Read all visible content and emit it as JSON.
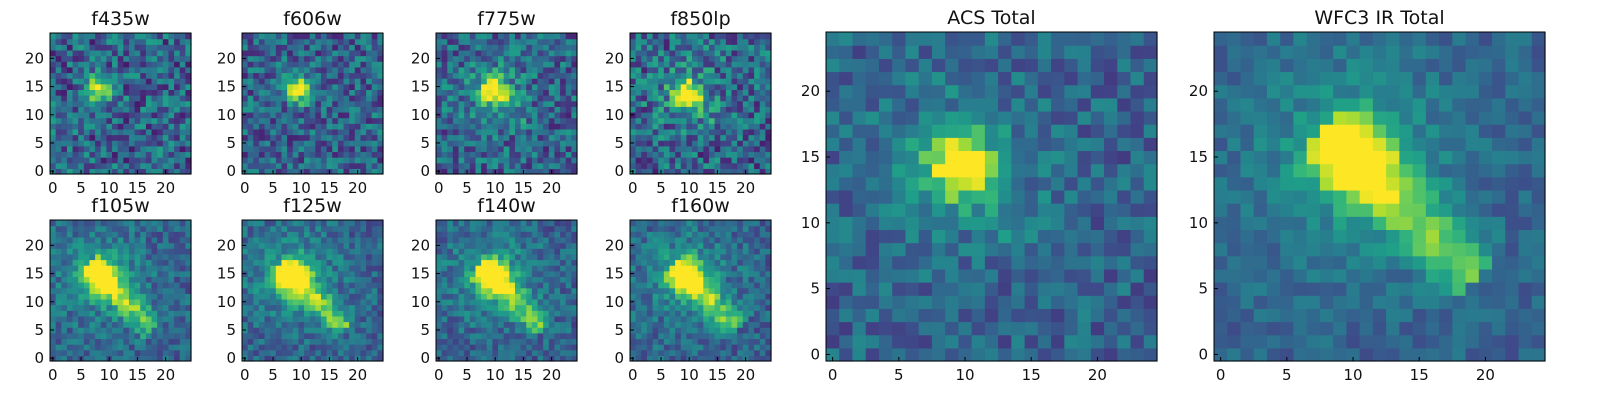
{
  "figure": {
    "colormap": "viridis",
    "background": "#ffffff",
    "frame_color": "#000000"
  },
  "chart_data": [
    {
      "type": "heatmap",
      "title": "f435w",
      "xticks": [
        "0",
        "5",
        "10",
        "15",
        "20"
      ],
      "yticks": [
        "0",
        "5",
        "10",
        "15",
        "20"
      ],
      "xlim": [
        0,
        24
      ],
      "ylim": [
        0,
        24
      ],
      "peak": [
        8.5,
        14.5
      ],
      "pattern": "compact",
      "noise": 0.5
    },
    {
      "type": "heatmap",
      "title": "f606w",
      "xticks": [
        "0",
        "5",
        "10",
        "15",
        "20"
      ],
      "yticks": [
        "0",
        "5",
        "10",
        "15",
        "20"
      ],
      "xlim": [
        0,
        24
      ],
      "ylim": [
        0,
        24
      ],
      "peak": [
        9.5,
        14.5
      ],
      "pattern": "compact",
      "noise": 0.45
    },
    {
      "type": "heatmap",
      "title": "f775w",
      "xticks": [
        "0",
        "5",
        "10",
        "15",
        "20"
      ],
      "yticks": [
        "0",
        "5",
        "10",
        "15",
        "20"
      ],
      "xlim": [
        0,
        24
      ],
      "ylim": [
        0,
        24
      ],
      "peak": [
        9.5,
        14.5
      ],
      "pattern": "compact-tail",
      "noise": 0.45
    },
    {
      "type": "heatmap",
      "title": "f850lp",
      "xticks": [
        "0",
        "5",
        "10",
        "15",
        "20"
      ],
      "yticks": [
        "0",
        "5",
        "10",
        "15",
        "20"
      ],
      "xlim": [
        0,
        24
      ],
      "ylim": [
        0,
        24
      ],
      "peak": [
        9.5,
        14
      ],
      "pattern": "compact-tail",
      "noise": 0.5
    },
    {
      "type": "heatmap",
      "title": "f105w",
      "xticks": [
        "0",
        "5",
        "10",
        "15",
        "20"
      ],
      "yticks": [
        "0",
        "5",
        "10",
        "15",
        "20"
      ],
      "xlim": [
        0,
        24
      ],
      "ylim": [
        0,
        24
      ],
      "peak": [
        8.5,
        14.5
      ],
      "pattern": "extended",
      "noise": 0.3
    },
    {
      "type": "heatmap",
      "title": "f125w",
      "xticks": [
        "0",
        "5",
        "10",
        "15",
        "20"
      ],
      "yticks": [
        "0",
        "5",
        "10",
        "15",
        "20"
      ],
      "xlim": [
        0,
        24
      ],
      "ylim": [
        0,
        24
      ],
      "peak": [
        8.5,
        14.5
      ],
      "pattern": "extended",
      "noise": 0.3
    },
    {
      "type": "heatmap",
      "title": "f140w",
      "xticks": [
        "0",
        "5",
        "10",
        "15",
        "20"
      ],
      "yticks": [
        "0",
        "5",
        "10",
        "15",
        "20"
      ],
      "xlim": [
        0,
        24
      ],
      "ylim": [
        0,
        24
      ],
      "peak": [
        9.5,
        14.5
      ],
      "pattern": "extended",
      "noise": 0.3
    },
    {
      "type": "heatmap",
      "title": "f160w",
      "xticks": [
        "0",
        "5",
        "10",
        "15",
        "20"
      ],
      "yticks": [
        "0",
        "5",
        "10",
        "15",
        "20"
      ],
      "xlim": [
        0,
        24
      ],
      "ylim": [
        0,
        24
      ],
      "peak": [
        9.5,
        14.5
      ],
      "pattern": "extended",
      "noise": 0.3
    },
    {
      "type": "heatmap",
      "title": "ACS Total",
      "xticks": [
        "0",
        "5",
        "10",
        "15",
        "20"
      ],
      "yticks": [
        "0",
        "5",
        "10",
        "15",
        "20"
      ],
      "xlim": [
        0,
        24
      ],
      "ylim": [
        0,
        24
      ],
      "peak": [
        9.5,
        14.5
      ],
      "pattern": "compact-tail",
      "noise": 0.3
    },
    {
      "type": "heatmap",
      "title": "WFC3 IR Total",
      "xticks": [
        "0",
        "5",
        "10",
        "15",
        "20"
      ],
      "yticks": [
        "0",
        "5",
        "10",
        "15",
        "20"
      ],
      "xlim": [
        0,
        24
      ],
      "ylim": [
        0,
        24
      ],
      "peak": [
        10,
        15
      ],
      "pattern": "extended",
      "noise": 0.2
    }
  ]
}
